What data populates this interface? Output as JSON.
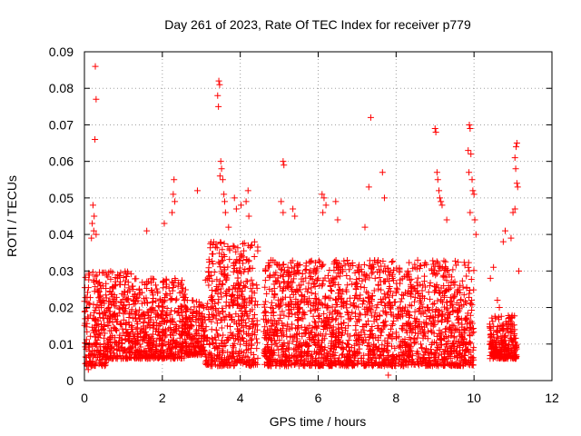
{
  "chart_data": {
    "type": "scatter",
    "title": "Day 261 of 2023, Rate Of TEC Index for receiver p779",
    "xlabel": "GPS time / hours",
    "ylabel": "ROTI / TECUs",
    "xlim": [
      0,
      12
    ],
    "ylim": [
      0,
      0.09
    ],
    "x_ticks": [
      0,
      2,
      4,
      6,
      8,
      10,
      12
    ],
    "x_tick_labels": [
      "0",
      "2",
      "4",
      "6",
      "8",
      "10",
      "12"
    ],
    "y_ticks": [
      0,
      0.01,
      0.02,
      0.03,
      0.04,
      0.05,
      0.06,
      0.07,
      0.08,
      0.09
    ],
    "y_tick_labels": [
      "0",
      "0.01",
      "0.02",
      "0.03",
      "0.04",
      "0.05",
      "0.06",
      "0.07",
      "0.08",
      "0.09"
    ],
    "grid": true,
    "marker": "+",
    "series": [
      {
        "name": "ROTI",
        "color": "#ff0000",
        "segments": [
          {
            "x_range": [
              0.0,
              0.55
            ],
            "y_typical": [
              0.004,
              0.03
            ]
          },
          {
            "x_range": [
              0.55,
              1.2
            ],
            "y_typical": [
              0.006,
              0.03
            ]
          },
          {
            "x_range": [
              1.2,
              2.6
            ],
            "y_typical": [
              0.006,
              0.028
            ]
          },
          {
            "x_range": [
              2.6,
              3.1
            ],
            "y_typical": [
              0.007,
              0.022
            ]
          },
          {
            "x_range": [
              3.1,
              4.45
            ],
            "y_typical": [
              0.004,
              0.038
            ]
          },
          {
            "x_range": [
              4.6,
              10.0
            ],
            "y_typical": [
              0.004,
              0.033
            ]
          },
          {
            "x_range": [
              10.4,
              11.1
            ],
            "y_typical": [
              0.006,
              0.018
            ]
          }
        ],
        "points": [
          {
            "x": 0.28,
            "y": 0.086
          },
          {
            "x": 0.3,
            "y": 0.077
          },
          {
            "x": 0.27,
            "y": 0.066
          },
          {
            "x": 0.22,
            "y": 0.048
          },
          {
            "x": 0.25,
            "y": 0.045
          },
          {
            "x": 0.2,
            "y": 0.043
          },
          {
            "x": 0.24,
            "y": 0.041
          },
          {
            "x": 0.18,
            "y": 0.039
          },
          {
            "x": 0.3,
            "y": 0.04
          },
          {
            "x": 1.6,
            "y": 0.041
          },
          {
            "x": 2.05,
            "y": 0.043
          },
          {
            "x": 2.3,
            "y": 0.055
          },
          {
            "x": 2.28,
            "y": 0.051
          },
          {
            "x": 2.32,
            "y": 0.049
          },
          {
            "x": 2.25,
            "y": 0.046
          },
          {
            "x": 2.9,
            "y": 0.052
          },
          {
            "x": 3.45,
            "y": 0.082
          },
          {
            "x": 3.47,
            "y": 0.081
          },
          {
            "x": 3.42,
            "y": 0.078
          },
          {
            "x": 3.44,
            "y": 0.075
          },
          {
            "x": 3.5,
            "y": 0.06
          },
          {
            "x": 3.52,
            "y": 0.058
          },
          {
            "x": 3.48,
            "y": 0.056
          },
          {
            "x": 3.55,
            "y": 0.055
          },
          {
            "x": 3.58,
            "y": 0.051
          },
          {
            "x": 3.6,
            "y": 0.049
          },
          {
            "x": 3.62,
            "y": 0.046
          },
          {
            "x": 3.7,
            "y": 0.042
          },
          {
            "x": 3.85,
            "y": 0.05
          },
          {
            "x": 3.9,
            "y": 0.047
          },
          {
            "x": 4.02,
            "y": 0.048
          },
          {
            "x": 4.2,
            "y": 0.052
          },
          {
            "x": 4.15,
            "y": 0.049
          },
          {
            "x": 4.22,
            "y": 0.045
          },
          {
            "x": 5.1,
            "y": 0.06
          },
          {
            "x": 5.12,
            "y": 0.059
          },
          {
            "x": 5.05,
            "y": 0.049
          },
          {
            "x": 5.1,
            "y": 0.046
          },
          {
            "x": 5.35,
            "y": 0.047
          },
          {
            "x": 5.4,
            "y": 0.045
          },
          {
            "x": 6.1,
            "y": 0.051
          },
          {
            "x": 6.15,
            "y": 0.05
          },
          {
            "x": 6.2,
            "y": 0.048
          },
          {
            "x": 6.12,
            "y": 0.046
          },
          {
            "x": 6.45,
            "y": 0.049
          },
          {
            "x": 6.5,
            "y": 0.044
          },
          {
            "x": 7.35,
            "y": 0.072
          },
          {
            "x": 7.3,
            "y": 0.053
          },
          {
            "x": 7.65,
            "y": 0.057
          },
          {
            "x": 7.7,
            "y": 0.05
          },
          {
            "x": 7.2,
            "y": 0.042
          },
          {
            "x": 9.0,
            "y": 0.069
          },
          {
            "x": 9.02,
            "y": 0.068
          },
          {
            "x": 9.05,
            "y": 0.057
          },
          {
            "x": 9.07,
            "y": 0.055
          },
          {
            "x": 9.1,
            "y": 0.052
          },
          {
            "x": 9.12,
            "y": 0.05
          },
          {
            "x": 9.15,
            "y": 0.049
          },
          {
            "x": 9.18,
            "y": 0.048
          },
          {
            "x": 9.3,
            "y": 0.044
          },
          {
            "x": 9.88,
            "y": 0.07
          },
          {
            "x": 9.9,
            "y": 0.069
          },
          {
            "x": 9.85,
            "y": 0.063
          },
          {
            "x": 9.92,
            "y": 0.062
          },
          {
            "x": 9.87,
            "y": 0.057
          },
          {
            "x": 9.95,
            "y": 0.055
          },
          {
            "x": 9.97,
            "y": 0.052
          },
          {
            "x": 10.0,
            "y": 0.051
          },
          {
            "x": 9.9,
            "y": 0.046
          },
          {
            "x": 10.02,
            "y": 0.044
          },
          {
            "x": 10.05,
            "y": 0.04
          },
          {
            "x": 11.1,
            "y": 0.065
          },
          {
            "x": 11.08,
            "y": 0.064
          },
          {
            "x": 11.05,
            "y": 0.061
          },
          {
            "x": 11.07,
            "y": 0.058
          },
          {
            "x": 11.1,
            "y": 0.054
          },
          {
            "x": 11.12,
            "y": 0.053
          },
          {
            "x": 11.05,
            "y": 0.047
          },
          {
            "x": 11.0,
            "y": 0.046
          },
          {
            "x": 10.95,
            "y": 0.039
          },
          {
            "x": 10.8,
            "y": 0.041
          },
          {
            "x": 10.75,
            "y": 0.038
          },
          {
            "x": 10.5,
            "y": 0.031
          },
          {
            "x": 10.42,
            "y": 0.028
          },
          {
            "x": 11.15,
            "y": 0.03
          },
          {
            "x": 10.6,
            "y": 0.022
          },
          {
            "x": 10.65,
            "y": 0.02
          },
          {
            "x": 7.8,
            "y": 0.0015
          },
          {
            "x": 0.1,
            "y": 0.003
          },
          {
            "x": 1.3,
            "y": 0.01
          }
        ]
      }
    ]
  }
}
